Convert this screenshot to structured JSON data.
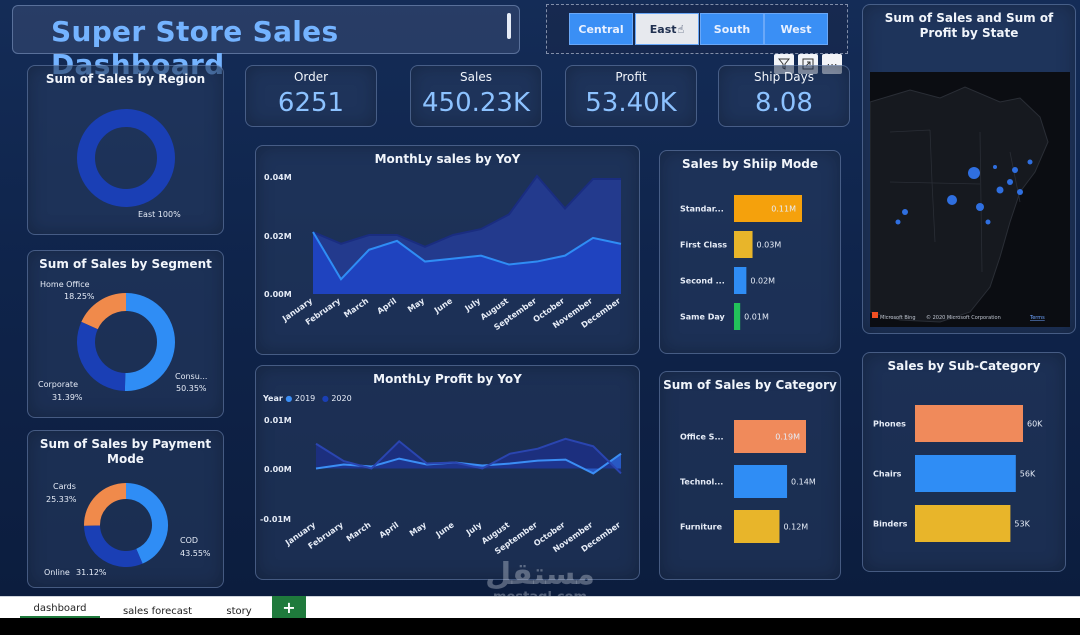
{
  "dashboard": {
    "title": "Super Store Sales Dashboard"
  },
  "region_slicer": {
    "options": [
      "Central",
      "East",
      "South",
      "West"
    ],
    "selected": "East"
  },
  "kpis": [
    {
      "label": "Order",
      "value": "6251"
    },
    {
      "label": "Sales",
      "value": "450.23K"
    },
    {
      "label": "Profit",
      "value": "53.40K"
    },
    {
      "label": "Ship Days",
      "value": "8.08"
    }
  ],
  "region_card": {
    "title": "Sum of Sales by Region",
    "slice_label": "East 100%"
  },
  "segment_card": {
    "title": "Sum of Sales by Segment",
    "slices": [
      {
        "name": "Home Office",
        "pct": "18.25%",
        "value": 18.25,
        "color": "#f08a4b"
      },
      {
        "name": "Consu...",
        "pct": "50.35%",
        "value": 50.35,
        "color": "#2f8df5"
      },
      {
        "name": "Corporate",
        "pct": "31.39%",
        "value": 31.39,
        "color": "#1a3fb5"
      }
    ]
  },
  "payment_card": {
    "title": "Sum of Sales by Payment Mode",
    "slices": [
      {
        "name": "Cards",
        "pct": "25.33%",
        "value": 25.33,
        "color": "#f08a4b"
      },
      {
        "name": "COD",
        "pct": "43.55%",
        "value": 43.55,
        "color": "#2f8df5"
      },
      {
        "name": "Online",
        "pct": "31.12%",
        "value": 31.12,
        "color": "#1a3fb5"
      }
    ]
  },
  "monthly_sales": {
    "title": "MonthLy sales by YoY",
    "y_ticks": [
      "0.04M",
      "0.02M",
      "0.00M"
    ]
  },
  "monthly_profit": {
    "title": "MonthLy Profit by YoY",
    "legend_title": "Year",
    "legend": [
      "2019",
      "2020"
    ],
    "y_ticks": [
      "0.01M",
      "0.00M",
      "-0.01M"
    ]
  },
  "ship_mode": {
    "title": "Sales by Shiip Mode",
    "bars": [
      {
        "name": "Standar...",
        "label": "0.11M",
        "value": 0.11,
        "color": "#f5a10c"
      },
      {
        "name": "First Class",
        "label": "0.03M",
        "value": 0.03,
        "color": "#e8b52a"
      },
      {
        "name": "Second ...",
        "label": "0.02M",
        "value": 0.02,
        "color": "#2f8df5"
      },
      {
        "name": "Same Day",
        "label": "0.01M",
        "value": 0.01,
        "color": "#22c25a"
      }
    ]
  },
  "category": {
    "title": "Sum of Sales by Category",
    "bars": [
      {
        "name": "Office S...",
        "label": "0.19M",
        "value": 0.19,
        "color": "#f08a5b"
      },
      {
        "name": "Technol...",
        "label": "0.14M",
        "value": 0.14,
        "color": "#2f8df5"
      },
      {
        "name": "Furniture",
        "label": "0.12M",
        "value": 0.12,
        "color": "#e8b52a"
      }
    ]
  },
  "map_card": {
    "title": "Sum of Sales and Sum of Profit by State",
    "attribution": "© 2020 Microsoft Corporation",
    "terms": "Terms",
    "brand": "Microsoft Bing"
  },
  "subcategory": {
    "title": "Sales by Sub-Category",
    "bars": [
      {
        "name": "Phones",
        "label": "60K",
        "value": 60,
        "color": "#f08a5b"
      },
      {
        "name": "Chairs",
        "label": "56K",
        "value": 56,
        "color": "#2f8df5"
      },
      {
        "name": "Binders",
        "label": "53K",
        "value": 53,
        "color": "#e8b52a"
      }
    ]
  },
  "chart_data": [
    {
      "type": "area",
      "title": "MonthLy sales by YoY",
      "categories": [
        "January",
        "February",
        "March",
        "April",
        "May",
        "June",
        "July",
        "August",
        "September",
        "October",
        "November",
        "December"
      ],
      "ylim": [
        0,
        0.04
      ],
      "series": [
        {
          "values": [
            0.021,
            0.017,
            0.02,
            0.02,
            0.016,
            0.02,
            0.022,
            0.027,
            0.04,
            0.029,
            0.039,
            0.039
          ]
        },
        {
          "values": [
            0.021,
            0.005,
            0.015,
            0.018,
            0.011,
            0.012,
            0.013,
            0.01,
            0.011,
            0.013,
            0.019,
            0.017
          ]
        }
      ]
    },
    {
      "type": "area",
      "title": "MonthLy Profit by YoY",
      "categories": [
        "January",
        "February",
        "March",
        "April",
        "May",
        "June",
        "July",
        "August",
        "September",
        "October",
        "November",
        "December"
      ],
      "ylim": [
        -0.01,
        0.01
      ],
      "series": [
        {
          "name": "2019",
          "values": [
            0.0,
            0.0008,
            0.0004,
            0.002,
            0.0008,
            0.0012,
            0.0006,
            0.001,
            0.0016,
            0.0018,
            -0.001,
            0.003
          ]
        },
        {
          "name": "2020",
          "values": [
            0.005,
            0.0015,
            0.0,
            0.0055,
            0.001,
            0.0012,
            0.0,
            0.003,
            0.004,
            0.006,
            0.0045,
            -0.001
          ]
        }
      ]
    }
  ]
}
